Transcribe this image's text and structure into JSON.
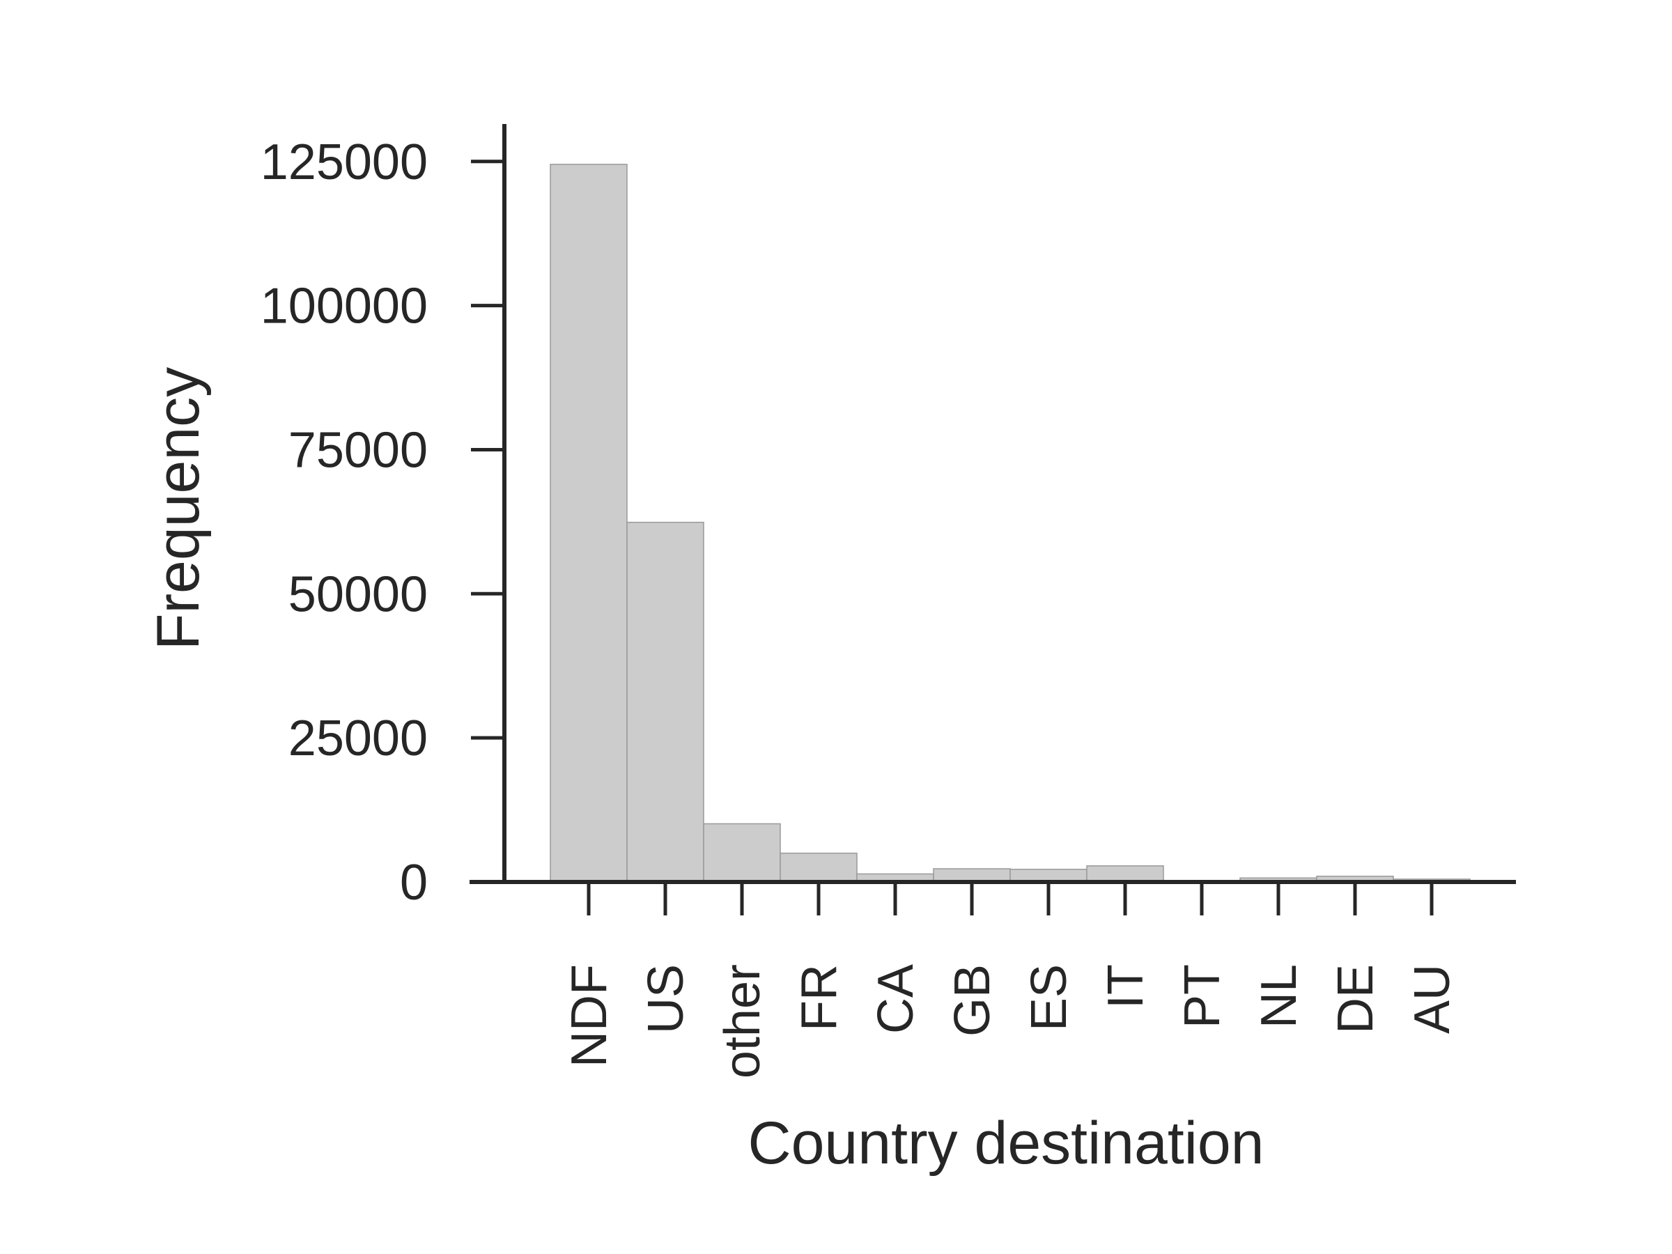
{
  "chart_data": {
    "type": "bar",
    "xlabel": "Country destination",
    "ylabel": "Frequency",
    "categories": [
      "NDF",
      "US",
      "other",
      "FR",
      "CA",
      "GB",
      "ES",
      "IT",
      "PT",
      "NL",
      "DE",
      "AU"
    ],
    "values": [
      124500,
      62400,
      10100,
      5000,
      1400,
      2300,
      2200,
      2800,
      200,
      700,
      1000,
      500
    ],
    "ylim": [
      0,
      131500
    ],
    "yticks": [
      0,
      25000,
      50000,
      75000,
      100000,
      125000
    ],
    "ytick_labels": [
      "0",
      "25000",
      "50000",
      "75000",
      "100000",
      "125000"
    ],
    "grid": false,
    "legend": "none",
    "colors": {
      "bar_fill": "#cccccc",
      "bar_edge": "#9a9a9a",
      "axis": "#262626",
      "text": "#262626"
    }
  }
}
